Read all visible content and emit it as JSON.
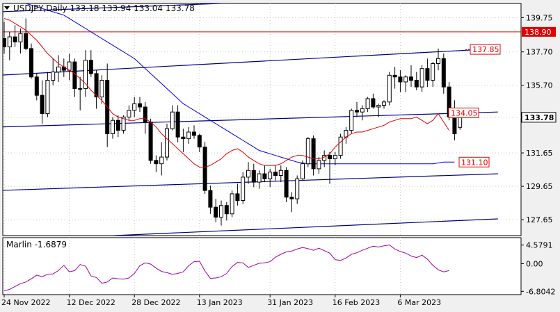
{
  "header": {
    "symbol_line": "USDJPY,Daily  133.18 133.94 133.04 133.78"
  },
  "colors": {
    "background": "#ffffff",
    "frame": "#000000",
    "grid": "#c8c8c8",
    "candle": "#000000",
    "ma_fast": "#e00000",
    "ma_slow": "#0000d0",
    "channel": "#000080",
    "level": "#e00000",
    "oscillator": "#a000a0",
    "price_tag": "#000000"
  },
  "chart_data": [
    {
      "type": "candlestick",
      "title": "USDJPY,Daily",
      "ohlc_header": {
        "open": 133.18,
        "high": 133.94,
        "low": 133.04,
        "close": 133.78
      },
      "y_ticks": [
        139.75,
        137.7,
        135.7,
        133.78,
        131.65,
        129.65,
        127.65
      ],
      "y_tick_labels": [
        "139.75",
        "137.70",
        "135.70",
        "131.65",
        "129.65",
        "127.65"
      ],
      "ylim": [
        126.7,
        140.6
      ],
      "x_tick_labels": [
        "24 Nov 2022",
        "12 Dec 2022",
        "28 Dec 2022",
        "13 Jan 2023",
        "31 Jan 2023",
        "16 Feb 2023",
        "6 Mar 2023"
      ],
      "x_tick_index": [
        0,
        12,
        24,
        36,
        49,
        61,
        73
      ],
      "current_price": {
        "value": 133.78,
        "label": "133.78"
      },
      "horizontal_levels": [
        {
          "value": 138.9,
          "label": "138.90"
        }
      ],
      "level_tags": [
        {
          "value": 137.85,
          "label": "137.85"
        },
        {
          "value": 134.05,
          "label": "134.05"
        },
        {
          "value": 131.1,
          "label": "131.10"
        }
      ],
      "channel_lines": [
        {
          "from": [
            -1,
            136.3
          ],
          "to": [
            91,
            137.9
          ]
        },
        {
          "from": [
            -1,
            133.2
          ],
          "to": [
            91,
            134.1
          ]
        },
        {
          "from": [
            -1,
            129.4
          ],
          "to": [
            91,
            130.4
          ]
        },
        {
          "from": [
            -1,
            126.4
          ],
          "to": [
            91,
            127.7
          ]
        },
        {
          "from": [
            -1,
            140.1
          ],
          "to": [
            48,
            140.7
          ]
        }
      ],
      "candles": [
        [
          138.5,
          139.5,
          137.6,
          138.0
        ],
        [
          138.0,
          138.9,
          137.2,
          138.6
        ],
        [
          138.6,
          139.3,
          138.0,
          138.3
        ],
        [
          138.3,
          139.1,
          137.6,
          138.8
        ],
        [
          138.8,
          139.7,
          137.8,
          137.9
        ],
        [
          137.9,
          138.2,
          136.1,
          136.2
        ],
        [
          136.2,
          136.4,
          134.8,
          135.1
        ],
        [
          135.1,
          136.0,
          133.4,
          134.0
        ],
        [
          134.0,
          136.5,
          133.8,
          136.0
        ],
        [
          136.0,
          137.3,
          135.7,
          136.5
        ],
        [
          136.5,
          137.5,
          135.9,
          136.8
        ],
        [
          136.8,
          137.3,
          136.2,
          136.6
        ],
        [
          136.6,
          137.6,
          136.0,
          137.1
        ],
        [
          137.1,
          137.3,
          135.0,
          135.5
        ],
        [
          135.5,
          136.2,
          134.2,
          135.5
        ],
        [
          135.5,
          137.8,
          135.0,
          137.2
        ],
        [
          137.2,
          137.8,
          136.2,
          136.4
        ],
        [
          136.4,
          136.6,
          134.3,
          135.0
        ],
        [
          135.0,
          136.3,
          134.6,
          136.0
        ],
        [
          136.0,
          137.0,
          132.0,
          132.8
        ],
        [
          132.8,
          133.8,
          132.5,
          133.6
        ],
        [
          133.6,
          133.9,
          132.6,
          133.0
        ],
        [
          133.0,
          133.9,
          132.8,
          133.8
        ],
        [
          133.8,
          134.5,
          133.6,
          134.2
        ],
        [
          134.2,
          135.0,
          133.8,
          134.6
        ],
        [
          134.6,
          135.0,
          134.1,
          134.4
        ],
        [
          134.4,
          134.7,
          132.8,
          133.5
        ],
        [
          133.5,
          133.7,
          131.0,
          131.2
        ],
        [
          131.2,
          131.5,
          130.5,
          131.0
        ],
        [
          131.0,
          132.3,
          130.3,
          131.4
        ],
        [
          131.4,
          133.4,
          131.2,
          133.1
        ],
        [
          133.1,
          134.5,
          133.0,
          134.1
        ],
        [
          134.1,
          134.5,
          132.3,
          132.6
        ],
        [
          132.6,
          133.1,
          131.7,
          132.5
        ],
        [
          132.5,
          133.2,
          132.2,
          132.9
        ],
        [
          132.9,
          133.3,
          132.5,
          132.7
        ],
        [
          132.7,
          132.8,
          131.7,
          132.0
        ],
        [
          132.0,
          132.3,
          129.2,
          129.4
        ],
        [
          129.4,
          129.7,
          128.0,
          128.4
        ],
        [
          128.4,
          128.9,
          127.5,
          127.8
        ],
        [
          127.8,
          128.8,
          127.3,
          128.5
        ],
        [
          128.5,
          128.7,
          127.6,
          128.0
        ],
        [
          128.0,
          129.4,
          127.8,
          129.2
        ],
        [
          129.2,
          129.8,
          128.5,
          128.8
        ],
        [
          128.8,
          130.5,
          128.6,
          130.2
        ],
        [
          130.2,
          131.1,
          129.8,
          130.6
        ],
        [
          130.6,
          131.0,
          129.6,
          129.9
        ],
        [
          129.9,
          130.6,
          129.5,
          130.4
        ],
        [
          130.4,
          130.9,
          129.9,
          130.1
        ],
        [
          130.1,
          130.7,
          129.6,
          130.5
        ],
        [
          130.5,
          130.9,
          130.0,
          130.3
        ],
        [
          130.3,
          130.9,
          129.9,
          130.6
        ],
        [
          130.6,
          130.8,
          128.7,
          129.0
        ],
        [
          129.0,
          129.3,
          128.1,
          128.9
        ],
        [
          128.9,
          130.3,
          128.6,
          130.1
        ],
        [
          130.1,
          131.2,
          130.0,
          131.0
        ],
        [
          131.0,
          132.6,
          130.8,
          132.5
        ],
        [
          132.5,
          132.7,
          130.3,
          130.7
        ],
        [
          130.7,
          131.4,
          130.4,
          131.2
        ],
        [
          131.2,
          131.8,
          130.8,
          131.5
        ],
        [
          131.5,
          131.7,
          129.8,
          131.3
        ],
        [
          131.3,
          131.7,
          130.9,
          131.5
        ],
        [
          131.5,
          132.8,
          131.3,
          132.6
        ],
        [
          132.6,
          133.2,
          132.2,
          133.0
        ],
        [
          133.0,
          134.3,
          132.8,
          134.2
        ],
        [
          134.2,
          134.7,
          133.8,
          134.1
        ],
        [
          134.1,
          134.5,
          133.6,
          134.3
        ],
        [
          134.3,
          135.0,
          134.1,
          134.9
        ],
        [
          134.9,
          135.2,
          134.3,
          134.4
        ],
        [
          134.4,
          134.6,
          133.8,
          134.5
        ],
        [
          134.5,
          134.8,
          134.3,
          134.7
        ],
        [
          134.7,
          136.5,
          134.5,
          136.3
        ],
        [
          136.3,
          136.8,
          135.5,
          136.2
        ],
        [
          136.2,
          136.6,
          135.3,
          135.9
        ],
        [
          135.9,
          136.3,
          135.3,
          136.2
        ],
        [
          136.2,
          136.9,
          135.6,
          136.0
        ],
        [
          136.0,
          136.5,
          135.4,
          135.6
        ],
        [
          135.6,
          136.9,
          135.3,
          136.7
        ],
        [
          136.7,
          137.3,
          135.6,
          136.0
        ],
        [
          136.0,
          137.1,
          135.6,
          137.0
        ],
        [
          137.0,
          137.9,
          136.6,
          137.3
        ],
        [
          137.3,
          137.6,
          135.2,
          135.6
        ],
        [
          135.6,
          135.9,
          133.6,
          133.8
        ],
        [
          133.8,
          134.8,
          132.4,
          132.8
        ],
        [
          133.18,
          133.94,
          133.04,
          133.78
        ]
      ],
      "ma_fast": [
        139.7,
        139.6,
        139.4,
        139.2,
        139.0,
        138.7,
        138.4,
        138.0,
        137.6,
        137.3,
        137.0,
        136.8,
        136.6,
        136.4,
        136.1,
        135.8,
        135.4,
        135.1,
        134.8,
        134.4,
        134.0,
        133.8,
        133.7,
        133.6,
        133.6,
        133.7,
        133.7,
        133.5,
        133.2,
        132.8,
        132.5,
        132.2,
        131.9,
        131.6,
        131.3,
        131.0,
        130.8,
        130.8,
        130.9,
        131.1,
        131.3,
        131.6,
        131.8,
        131.9,
        131.7,
        131.4,
        131.2,
        131.0,
        130.9,
        130.9,
        130.9,
        131.0,
        131.2,
        131.4,
        131.5,
        131.5,
        131.4,
        131.3,
        131.3,
        131.4,
        131.6,
        132.0,
        132.3,
        132.6,
        132.8,
        132.9,
        132.9,
        133.0,
        133.1,
        133.2,
        133.3,
        133.5,
        133.6,
        133.7,
        133.7,
        133.7,
        133.8,
        133.6,
        133.4,
        133.6,
        134.0,
        133.5,
        133.0
      ],
      "ma_slow": [
        141.0,
        140.9,
        140.8,
        140.7,
        140.6,
        140.5,
        140.4,
        140.3,
        140.2,
        140.1,
        140.0,
        139.9,
        139.7,
        139.5,
        139.3,
        139.1,
        138.9,
        138.7,
        138.5,
        138.3,
        138.1,
        137.9,
        137.7,
        137.5,
        137.3,
        137.0,
        136.7,
        136.4,
        136.1,
        135.8,
        135.5,
        135.2,
        134.9,
        134.6,
        134.4,
        134.2,
        134.0,
        133.8,
        133.6,
        133.4,
        133.2,
        133.0,
        132.8,
        132.6,
        132.4,
        132.2,
        132.0,
        131.8,
        131.7,
        131.6,
        131.5,
        131.4,
        131.3,
        131.2,
        131.1,
        131.05,
        131.0,
        131.0,
        131.0,
        131.0,
        131.0,
        131.0,
        131.0,
        131.0,
        131.0,
        131.0,
        131.0,
        131.0,
        131.0,
        131.0,
        131.0,
        131.0,
        131.0,
        131.0,
        131.0,
        131.0,
        131.0,
        131.0,
        131.0,
        131.0,
        131.05,
        131.1,
        131.1,
        131.1
      ],
      "ma_slow_projection": [
        [
          84,
          131.1
        ],
        [
          89,
          131.1
        ]
      ]
    },
    {
      "type": "line",
      "title": "Marlin -1.6879",
      "y_tick_labels": [
        "4.5791",
        "0.00",
        "-6.8042"
      ],
      "y_ticks": [
        4.5791,
        0.0,
        -6.8042
      ],
      "ylim": [
        -7.6,
        6.4
      ],
      "values": [
        -6.7,
        -6.3,
        -5.6,
        -4.9,
        -4.5,
        -3.7,
        -2.8,
        -3.2,
        -2.6,
        -2.5,
        -1.7,
        -0.4,
        -2.0,
        -1.7,
        -0.2,
        -0.6,
        -3.0,
        -3.4,
        -4.8,
        -4.5,
        -3.5,
        -3.7,
        -3.8,
        -3.5,
        -2.4,
        -0.5,
        0.2,
        -0.1,
        -1.1,
        -1.9,
        -2.2,
        -2.6,
        -2.4,
        -2.0,
        -0.5,
        0.5,
        0.6,
        -1.8,
        -3.6,
        -3.5,
        -3.2,
        -2.4,
        -0.7,
        0.3,
        0.2,
        -0.9,
        -0.4,
        0.1,
        0.2,
        0.5,
        1.6,
        2.3,
        2.9,
        3.1,
        3.6,
        4.0,
        3.7,
        3.3,
        3.8,
        3.2,
        2.6,
        1.0,
        0.8,
        1.4,
        2.3,
        2.7,
        3.3,
        3.8,
        4.3,
        4.1,
        4.4,
        4.6,
        3.6,
        3.0,
        2.6,
        1.9,
        1.5,
        2.1,
        1.1,
        -0.4,
        -1.5,
        -2.0,
        -1.6879
      ]
    }
  ]
}
